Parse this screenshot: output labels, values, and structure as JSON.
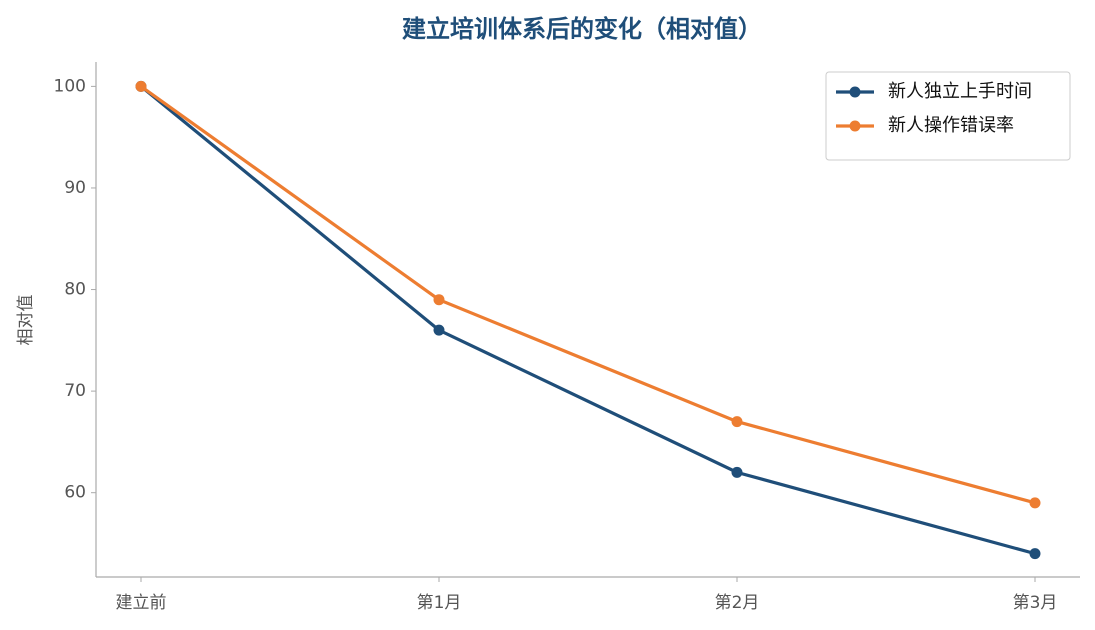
{
  "chart_data": {
    "type": "line",
    "title": "建立培训体系后的变化（相对值）",
    "ylabel": "相对值",
    "categories": [
      "建立前",
      "第1月",
      "第2月",
      "第3月"
    ],
    "series": [
      {
        "name": "新人独立上手时间",
        "color": "#1f4e79",
        "values": [
          100,
          76,
          62,
          54
        ]
      },
      {
        "name": "新人操作错误率",
        "color": "#ed7d31",
        "values": [
          100,
          79,
          67,
          59
        ]
      }
    ],
    "ylim": [
      51.7,
      102.4
    ],
    "yticks": [
      60,
      70,
      80,
      90,
      100
    ],
    "grid": false,
    "legend": "upper right"
  }
}
